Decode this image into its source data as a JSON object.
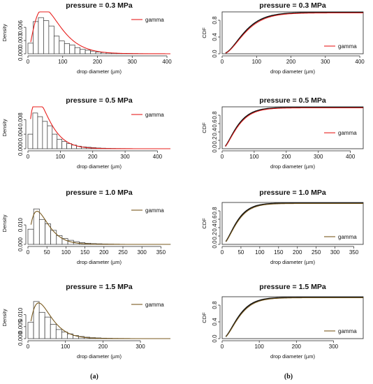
{
  "figure": {
    "panel_labels": [
      "(a)",
      "(b)"
    ]
  },
  "chart_data": [
    {
      "type": "bar",
      "title": "pressure = 0.3 MPa",
      "xlabel": "drop diameter (µm)",
      "ylabel": "Density",
      "xlim": [
        0,
        410
      ],
      "ylim": [
        0,
        0.0095
      ],
      "xticks": [
        0,
        100,
        200,
        300,
        400
      ],
      "yticks": [
        0.0,
        0.003,
        0.006
      ],
      "ytick_labels": [
        "0.000",
        "0.003",
        "0.006"
      ],
      "legend": "gamma",
      "legend_position": "top-right",
      "fit_color": "#e8201e",
      "bin_edges": [
        0,
        15,
        30,
        45,
        60,
        75,
        90,
        105,
        120,
        135,
        150,
        165,
        180,
        195,
        210,
        225,
        240,
        255,
        270,
        285,
        300,
        315,
        330,
        345,
        360,
        375,
        390,
        405
      ],
      "values": [
        0.0024,
        0.0073,
        0.0082,
        0.0075,
        0.0063,
        0.004,
        0.0029,
        0.0023,
        0.002,
        0.0014,
        0.001,
        0.0008,
        0.0006,
        0.0004,
        0.0003,
        0.0002,
        0.00015,
        0.0001,
        0.0001,
        7e-05,
        5e-05,
        4e-05,
        3e-05,
        2e-05,
        2e-05,
        1e-05,
        1e-05
      ],
      "gamma": {
        "shape": 2.5,
        "scale": 30,
        "from": 8,
        "to": 410
      }
    },
    {
      "type": "line",
      "title": "pressure = 0.3 MPa",
      "xlabel": "drop diameter (µm)",
      "ylabel": "CDF",
      "xlim": [
        0,
        410
      ],
      "ylim": [
        0,
        1
      ],
      "xticks": [
        0,
        100,
        200,
        300,
        400
      ],
      "yticks": [
        0.0,
        0.4,
        0.8
      ],
      "ytick_labels": [
        "0.0",
        "0.4",
        "0.8"
      ],
      "legend": "gamma",
      "legend_position": "bottom-right",
      "fit_color": "#e8201e",
      "gamma": {
        "shape": 2.5,
        "scale": 30,
        "from": 10,
        "to": 410
      }
    },
    {
      "type": "bar",
      "title": "pressure = 0.5 MPa",
      "xlabel": "drop diameter (µm)",
      "ylabel": "Density",
      "xlim": [
        0,
        440
      ],
      "ylim": [
        0,
        0.0115
      ],
      "xticks": [
        0,
        100,
        200,
        300,
        400
      ],
      "yticks": [
        0.0,
        0.004,
        0.008
      ],
      "ytick_labels": [
        "0.000",
        "0.004",
        "0.008"
      ],
      "legend": "gamma",
      "legend_position": "top-right",
      "fit_color": "#e8201e",
      "bin_edges": [
        0,
        15,
        30,
        45,
        60,
        75,
        90,
        105,
        120,
        135,
        150,
        165,
        180,
        195,
        210,
        225,
        240,
        255,
        270,
        285,
        300,
        315,
        330,
        345,
        360,
        375,
        390,
        405,
        420,
        435
      ],
      "values": [
        0.004,
        0.0098,
        0.0088,
        0.0075,
        0.0063,
        0.004,
        0.0026,
        0.002,
        0.0014,
        0.001,
        0.0007,
        0.0005,
        0.0004,
        0.0003,
        0.0002,
        0.00015,
        0.0001,
        8e-05,
        6e-05,
        5e-05,
        4e-05,
        3e-05,
        2e-05,
        2e-05,
        1e-05,
        1e-05,
        1e-05,
        1e-05,
        1e-05
      ],
      "gamma": {
        "shape": 2.0,
        "scale": 27,
        "from": 8,
        "to": 440
      }
    },
    {
      "type": "line",
      "title": "pressure = 0.5 MPa",
      "xlabel": "drop diameter (µm)",
      "ylabel": "CDF",
      "xlim": [
        0,
        440
      ],
      "ylim": [
        0,
        1
      ],
      "xticks": [
        0,
        100,
        200,
        300,
        400
      ],
      "yticks": [
        0.0,
        0.2,
        0.4,
        0.6,
        0.8
      ],
      "ytick_labels": [
        "0.0",
        "0.2",
        "0.4",
        "0.6",
        "0.8"
      ],
      "legend": "gamma",
      "legend_position": "right",
      "fit_color": "#e8201e",
      "gamma": {
        "shape": 2.0,
        "scale": 27,
        "from": 10,
        "to": 440
      }
    },
    {
      "type": "bar",
      "title": "pressure = 1.0 MPa",
      "xlabel": "drop diameter (µm)",
      "ylabel": "Density",
      "xlim": [
        0,
        375
      ],
      "ylim": [
        0,
        0.0215
      ],
      "xticks": [
        0,
        50,
        100,
        150,
        200,
        250,
        300,
        350
      ],
      "yticks": [
        0.0,
        0.01
      ],
      "ytick_labels": [
        "0.000",
        "0.010"
      ],
      "legend": "gamma",
      "legend_position": "top-right",
      "fit_color": "#7a5a1e",
      "bin_edges": [
        0,
        15,
        30,
        45,
        60,
        75,
        90,
        105,
        120,
        135,
        150,
        165,
        180,
        195,
        210,
        225,
        240,
        255,
        270,
        285,
        300,
        315,
        330,
        345,
        360,
        375
      ],
      "values": [
        0.0078,
        0.0182,
        0.0128,
        0.0105,
        0.0072,
        0.0045,
        0.003,
        0.0021,
        0.0014,
        0.0009,
        0.0006,
        0.0004,
        0.0003,
        0.0002,
        0.00015,
        0.0001,
        8e-05,
        5e-05,
        4e-05,
        3e-05,
        2e-05,
        2e-05,
        1e-05,
        1e-05,
        1e-05
      ],
      "gamma": {
        "shape": 2.2,
        "scale": 20,
        "from": 8,
        "to": 375
      }
    },
    {
      "type": "line",
      "title": "pressure = 1.0 MPa",
      "xlabel": "drop diameter (µm)",
      "ylabel": "CDF",
      "xlim": [
        0,
        375
      ],
      "ylim": [
        0,
        1
      ],
      "xticks": [
        0,
        50,
        100,
        150,
        200,
        250,
        300,
        350
      ],
      "yticks": [
        0.0,
        0.2,
        0.4,
        0.6,
        0.8
      ],
      "ytick_labels": [
        "0.0",
        "0.2",
        "0.4",
        "0.6",
        "0.8"
      ],
      "legend": "gamma",
      "legend_position": "bottom-right",
      "fit_color": "#7a5a1e",
      "gamma": {
        "shape": 2.2,
        "scale": 20,
        "from": 10,
        "to": 375
      }
    },
    {
      "type": "bar",
      "title": "pressure = 1.5 MPa",
      "xlabel": "drop diameter (µm)",
      "ylabel": "Density",
      "xlim": [
        0,
        380
      ],
      "ylim": [
        0,
        0.0175
      ],
      "xticks": [
        0,
        100,
        200,
        300
      ],
      "yticks": [
        0.0,
        0.005,
        0.01
      ],
      "ytick_labels": [
        "0.000",
        "0.005",
        "0.010"
      ],
      "legend": "gamma",
      "legend_position": "top-right",
      "fit_color": "#7a5a1e",
      "bin_edges": [
        0,
        15,
        30,
        45,
        60,
        75,
        90,
        105,
        120,
        135,
        150,
        165,
        180,
        195,
        210,
        225,
        240,
        255,
        270,
        285,
        300,
        315,
        330,
        345,
        360,
        375
      ],
      "values": [
        0.0068,
        0.0155,
        0.011,
        0.009,
        0.006,
        0.0038,
        0.0028,
        0.002,
        0.0013,
        0.0009,
        0.0006,
        0.0004,
        0.0003,
        0.0002,
        0.00015,
        0.0001,
        8e-05,
        6e-05,
        5e-05,
        4e-05,
        3e-05,
        2e-05,
        2e-05,
        1e-05,
        1e-05
      ],
      "gamma": {
        "shape": 2.3,
        "scale": 22,
        "from": 8,
        "to": 380
      }
    },
    {
      "type": "line",
      "title": "pressure = 1.5 MPa",
      "xlabel": "drop diameter (µm)",
      "ylabel": "CDF",
      "xlim": [
        0,
        380
      ],
      "ylim": [
        0,
        1
      ],
      "xticks": [
        0,
        100,
        200,
        300
      ],
      "yticks": [
        0.0,
        0.4,
        0.8
      ],
      "ytick_labels": [
        "0.0",
        "0.4",
        "0.8"
      ],
      "legend": "gamma",
      "legend_position": "bottom-right",
      "fit_color": "#7a5a1e",
      "gamma": {
        "shape": 2.3,
        "scale": 22,
        "from": 10,
        "to": 380
      }
    }
  ]
}
